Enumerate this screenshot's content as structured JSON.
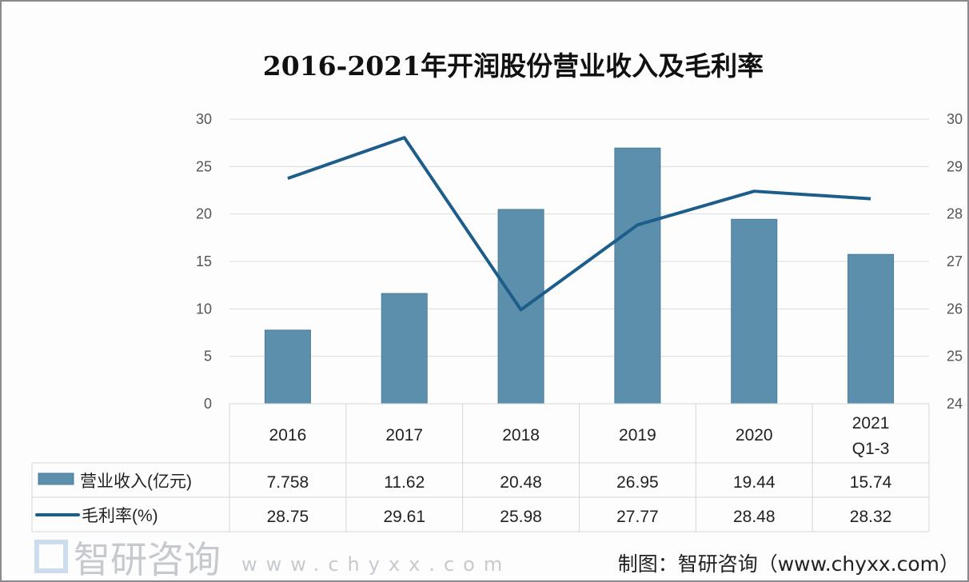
{
  "chart_data": {
    "type": "bar+line",
    "title": "2016-2021年开润股份营业收入及毛利率",
    "categories": [
      "2016",
      "2017",
      "2018",
      "2019",
      "2020",
      "2021\nQ1-3"
    ],
    "series": [
      {
        "name": "营业收入(亿元)",
        "type": "bar",
        "axis": "left",
        "values": [
          7.758,
          11.62,
          20.48,
          26.95,
          19.44,
          15.74
        ],
        "labels": [
          "7.758",
          "11.62",
          "20.48",
          "26.95",
          "19.44",
          "15.74"
        ],
        "color": "#5b8fab"
      },
      {
        "name": "毛利率(%)",
        "type": "line",
        "axis": "right",
        "values": [
          28.75,
          29.61,
          25.98,
          27.77,
          28.48,
          28.32
        ],
        "labels": [
          "28.75",
          "29.61",
          "25.98",
          "27.77",
          "28.48",
          "28.32"
        ],
        "color": "#1d5d8a"
      }
    ],
    "left_axis": {
      "ylim": [
        0,
        30
      ],
      "ticks": [
        0,
        5,
        10,
        15,
        20,
        25,
        30
      ]
    },
    "right_axis": {
      "ylim": [
        24,
        30
      ],
      "ticks": [
        24,
        25,
        26,
        27,
        28,
        29,
        30
      ]
    },
    "grid": true,
    "legend": "data-table-bottom"
  },
  "watermark": {
    "brand": "智研咨询",
    "url": "www.chyxx.com"
  },
  "source": "制图：智研咨询（www.chyxx.com）"
}
